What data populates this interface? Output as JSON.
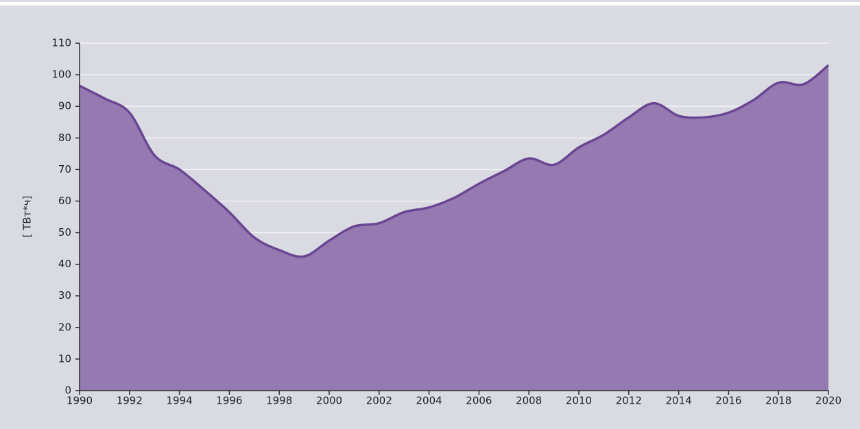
{
  "chart_data": {
    "type": "area",
    "y_label": "[ ТВт*ч]",
    "x": [
      1990,
      1991,
      1992,
      1993,
      1994,
      1995,
      1996,
      1997,
      1998,
      1999,
      2000,
      2001,
      2002,
      2003,
      2004,
      2005,
      2006,
      2007,
      2008,
      2009,
      2010,
      2011,
      2012,
      2013,
      2014,
      2015,
      2016,
      2017,
      2018,
      2019,
      2020
    ],
    "series": [
      {
        "color": "#6a4592",
        "fill": "#8f72ad",
        "values": [
          96.5,
          92.5,
          88,
          74.5,
          70,
          63.5,
          56.5,
          48.5,
          44.5,
          42.5,
          47.5,
          52,
          53,
          56.5,
          58,
          61,
          65.5,
          69.5,
          73.5,
          71.5,
          77,
          81,
          86.5,
          91,
          87,
          86.5,
          88,
          92,
          97.5,
          97,
          103
        ]
      }
    ],
    "xlim": [
      1990,
      2020
    ],
    "xticks": [
      1990,
      1992,
      1994,
      1996,
      1998,
      2000,
      2002,
      2004,
      2006,
      2008,
      2010,
      2012,
      2014,
      2016,
      2018,
      2020
    ],
    "ylim": [
      0,
      110
    ],
    "yticks": [
      0,
      10,
      20,
      30,
      40,
      50,
      60,
      70,
      80,
      90,
      100,
      110
    ],
    "grid": true
  }
}
